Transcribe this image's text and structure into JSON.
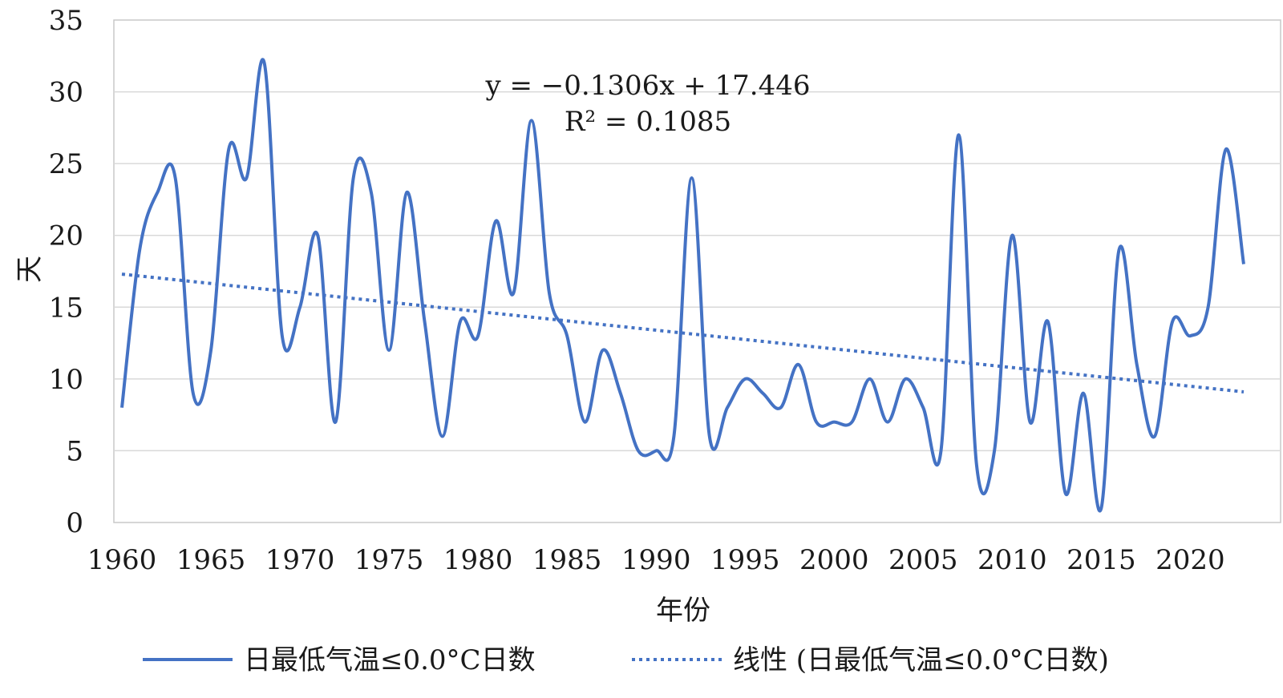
{
  "chart_data": {
    "type": "line",
    "title": "",
    "xlabel": "年份",
    "ylabel": "天",
    "xlim": [
      1960,
      2023
    ],
    "ylim": [
      0,
      35
    ],
    "x_ticks": [
      1960,
      1965,
      1970,
      1975,
      1980,
      1985,
      1990,
      1995,
      2000,
      2005,
      2010,
      2015,
      2020
    ],
    "y_ticks": [
      0,
      5,
      10,
      15,
      20,
      25,
      30,
      35
    ],
    "grid": "horizontal",
    "legend_position": "bottom",
    "series": [
      {
        "name": "日最低气温≤0.0°C日数",
        "style": "solid",
        "color": "#4472C4",
        "x": [
          1960,
          1961,
          1962,
          1963,
          1964,
          1965,
          1966,
          1967,
          1968,
          1969,
          1970,
          1971,
          1972,
          1973,
          1974,
          1975,
          1976,
          1977,
          1978,
          1979,
          1980,
          1981,
          1982,
          1983,
          1984,
          1985,
          1986,
          1987,
          1988,
          1989,
          1990,
          1991,
          1992,
          1993,
          1994,
          1995,
          1996,
          1997,
          1998,
          1999,
          2000,
          2001,
          2002,
          2003,
          2004,
          2005,
          2006,
          2007,
          2008,
          2009,
          2010,
          2011,
          2012,
          2013,
          2014,
          2015,
          2016,
          2017,
          2018,
          2019,
          2020,
          2021,
          2022,
          2023
        ],
        "y": [
          8,
          19,
          23,
          24,
          9,
          12,
          26,
          24,
          32,
          13,
          15,
          20,
          7,
          24,
          23,
          12,
          23,
          14,
          6,
          14,
          13,
          21,
          16,
          28,
          16,
          13,
          7,
          12,
          9,
          5,
          5,
          6,
          24,
          6,
          8,
          10,
          9,
          8,
          11,
          7,
          7,
          7,
          10,
          7,
          10,
          8,
          5,
          27,
          4,
          5,
          20,
          7,
          14,
          2,
          9,
          1,
          19,
          11,
          6,
          14,
          13,
          15,
          26,
          18
        ]
      },
      {
        "name": "线性 (日最低气温≤0.0°C日数)",
        "style": "dotted",
        "color": "#4472C4",
        "trend": {
          "slope": -0.1306,
          "intercept": 17.446
        },
        "x": [
          1960,
          2023
        ],
        "y": [
          17.3,
          9.1
        ]
      }
    ],
    "annotations": {
      "equation": "y = −0.1306x + 17.446",
      "r_squared": "R² = 0.1085"
    }
  }
}
